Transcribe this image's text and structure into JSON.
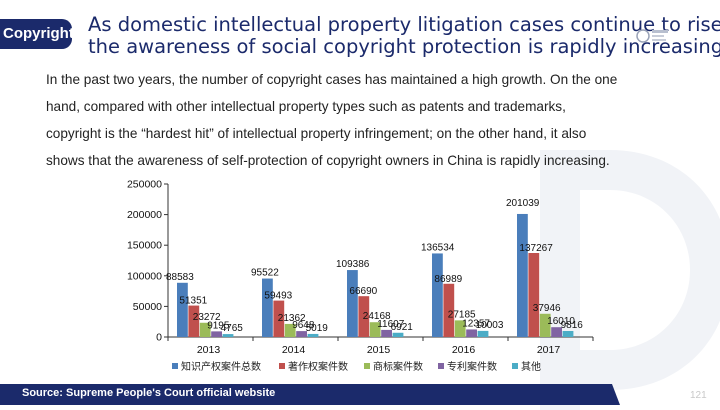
{
  "slide": {
    "tag": "Copyright",
    "title_line1": "As domestic intellectual property litigation cases continue to rise,",
    "title_line2": "the awareness of social copyright protection is rapidly increasing",
    "body_lines": [
      "In the past two years, the number of copyright cases has maintained a high growth. On the one",
      "hand, compared with other intellectual property types such as patents and trademarks,",
      "copyright is the  “hardest hit”  of intellectual property infringement; on the other hand, it also",
      "shows that the awareness of self-protection of copyright owners in China is rapidly increasing."
    ],
    "source": "Source: Supreme People's Court official website",
    "page_number": "121"
  },
  "colors": {
    "navy": "#1b2a6b",
    "series": [
      "#4a7ebb",
      "#c0504d",
      "#9bbb59",
      "#8064a2",
      "#4bacc6"
    ]
  },
  "chart_data": {
    "type": "bar",
    "categories": [
      "2013",
      "2014",
      "2015",
      "2016",
      "2017"
    ],
    "series": [
      {
        "name": "知识产权案件总数",
        "values": [
          88583,
          95522,
          109386,
          136534,
          201039
        ]
      },
      {
        "name": "著作权案件数",
        "values": [
          51351,
          59493,
          66690,
          86989,
          137267
        ]
      },
      {
        "name": "商标案件数",
        "values": [
          23272,
          21362,
          24168,
          27185,
          37946
        ]
      },
      {
        "name": "专利案件数",
        "values": [
          9195,
          9648,
          11607,
          12357,
          16010
        ]
      },
      {
        "name": "其他",
        "values": [
          4765,
          5019,
          6921,
          10003,
          9816
        ]
      }
    ],
    "y_ticks": [
      "0",
      "50000",
      "100000",
      "150000",
      "200000",
      "250000"
    ],
    "ylim": [
      0,
      250000
    ],
    "legend_position": "bottom",
    "grid": false
  }
}
